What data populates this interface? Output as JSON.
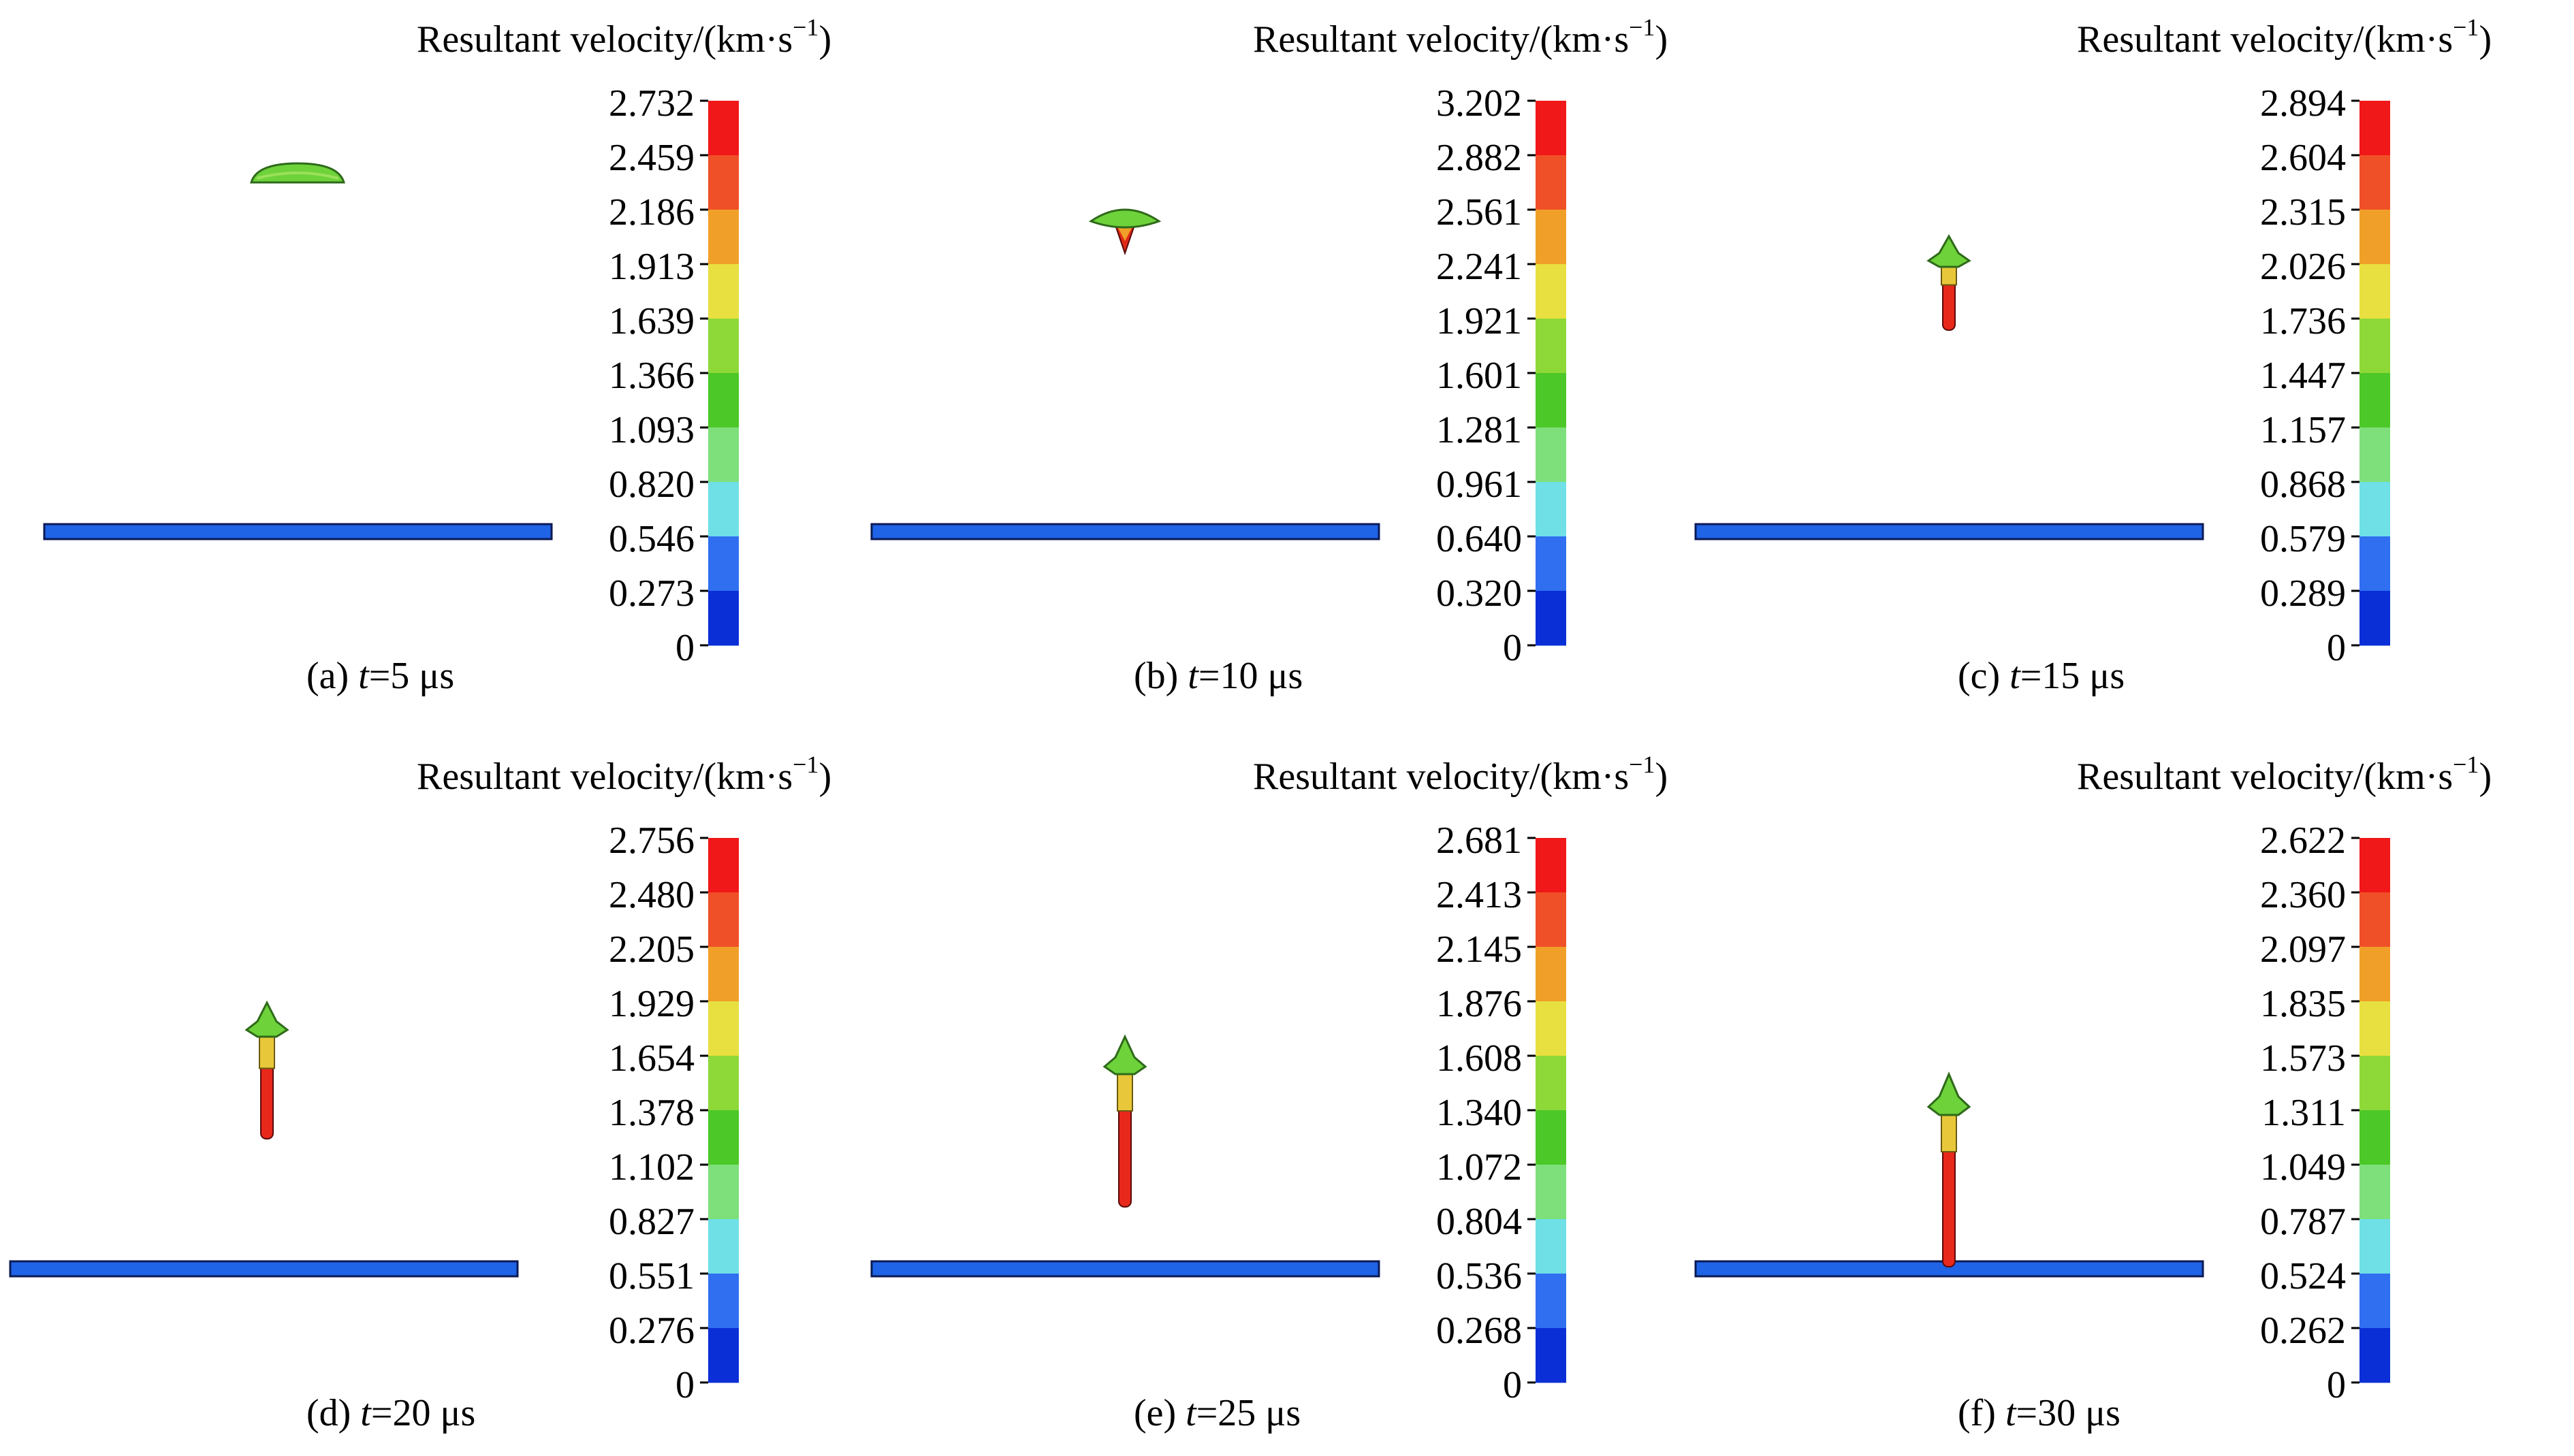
{
  "colorbar_title": "Resultant velocity/(km·s",
  "colorbar_title_sup": "−1",
  "colorbar_colors": [
    "#0a2fd6",
    "#2f6ff0",
    "#6ee0e6",
    "#7ee07a",
    "#4cc828",
    "#8ed838",
    "#e8e040",
    "#f0a028",
    "#f05028",
    "#f01818"
  ],
  "plate_color": "#1f63e6",
  "panels": [
    {
      "label": "(a) ",
      "t_var": "t",
      "t_value": "=5 μs",
      "ticks": [
        "2.732",
        "2.459",
        "2.186",
        "1.913",
        "1.639",
        "1.366",
        "1.093",
        "0.820",
        "0.546",
        "0.273",
        "0"
      ]
    },
    {
      "label": "(b) ",
      "t_var": "t",
      "t_value": "=10 μs",
      "ticks": [
        "3.202",
        "2.882",
        "2.561",
        "2.241",
        "1.921",
        "1.601",
        "1.281",
        "0.961",
        "0.640",
        "0.320",
        "0"
      ]
    },
    {
      "label": "(c) ",
      "t_var": "t",
      "t_value": "=15 μs",
      "ticks": [
        "2.894",
        "2.604",
        "2.315",
        "2.026",
        "1.736",
        "1.447",
        "1.157",
        "0.868",
        "0.579",
        "0.289",
        "0"
      ]
    },
    {
      "label": "(d) ",
      "t_var": "t",
      "t_value": "=20 μs",
      "ticks": [
        "2.756",
        "2.480",
        "2.205",
        "1.929",
        "1.654",
        "1.378",
        "1.102",
        "0.827",
        "0.551",
        "0.276",
        "0"
      ]
    },
    {
      "label": "(e) ",
      "t_var": "t",
      "t_value": "=25 μs",
      "ticks": [
        "2.681",
        "2.413",
        "2.145",
        "1.876",
        "1.608",
        "1.340",
        "1.072",
        "0.804",
        "0.536",
        "0.268",
        "0"
      ]
    },
    {
      "label": "(f) ",
      "t_var": "t",
      "t_value": "=30 μs",
      "ticks": [
        "2.622",
        "2.360",
        "2.097",
        "1.835",
        "1.573",
        "1.311",
        "1.049",
        "0.787",
        "0.524",
        "0.262",
        "0"
      ]
    }
  ]
}
